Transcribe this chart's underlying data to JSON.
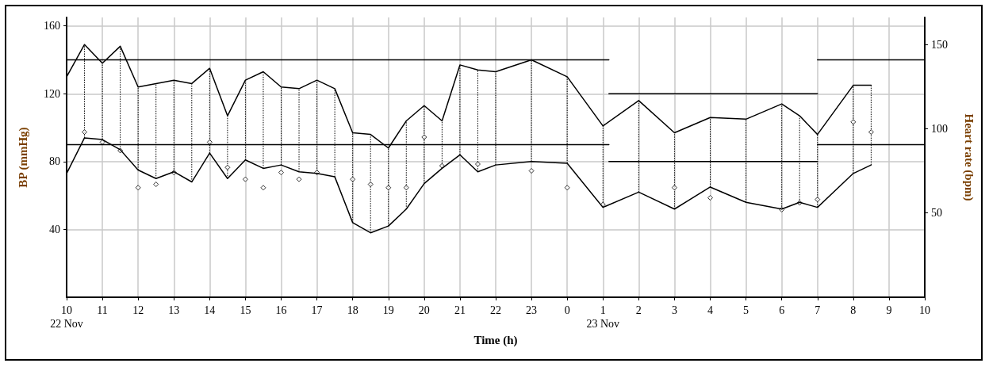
{
  "chart_data": {
    "type": "line",
    "xlabel": "Time (h)",
    "ylabel": "BP (mmHg)",
    "y2label": "Heart rate (bpm)",
    "x": [
      "--11-22T10:00",
      "--11-22T10:30",
      "--11-22T11:00",
      "--11-22T11:30",
      "--11-22T12:00",
      "--11-22T12:30",
      "--11-22T13:00",
      "--11-22T13:30",
      "--11-22T14:00",
      "--11-22T14:30",
      "--11-22T15:00",
      "--11-22T15:30",
      "--11-22T16:00",
      "--11-22T16:30",
      "--11-22T17:00",
      "--11-22T17:30",
      "--11-22T18:00",
      "--11-22T18:30",
      "--11-22T19:00",
      "--11-22T19:30",
      "--11-22T20:00",
      "--11-22T20:30",
      "--11-22T21:00",
      "--11-22T21:30",
      "--11-22T22:00",
      "--11-22T23:00",
      "--11-23T00:00",
      "--11-23T01:00",
      "--11-23T02:00",
      "--11-23T03:00",
      "--11-23T04:00",
      "--11-23T05:00",
      "--11-23T06:00",
      "--11-23T06:30",
      "--11-23T07:00",
      "--11-23T08:00",
      "--11-23T08:30"
    ],
    "series": [
      {
        "color": "#000000",
        "marker": "none",
        "values": [
          130,
          149,
          138,
          148,
          124,
          126,
          128,
          126,
          135,
          107,
          128,
          133,
          124,
          123,
          128,
          123,
          97,
          96,
          88,
          104,
          113,
          104,
          137,
          134,
          133,
          140,
          130,
          101,
          116,
          97,
          106,
          105,
          114,
          107,
          96,
          125,
          125
        ]
      },
      {
        "color": "#000000",
        "marker": "none",
        "values": [
          73,
          94,
          93,
          87,
          75,
          70,
          74,
          68,
          85,
          70,
          81,
          76,
          78,
          74,
          73,
          71,
          44,
          38,
          42,
          52,
          67,
          76,
          84,
          74,
          78,
          80,
          79,
          53,
          62,
          52,
          65,
          56,
          52,
          56,
          53,
          73,
          78
        ],
        "errors": [
          [
            73,
            130
          ],
          [
            94,
            149
          ],
          [
            93,
            138
          ],
          [
            87,
            148
          ],
          [
            75,
            124
          ],
          [
            70,
            126
          ],
          [
            74,
            128
          ],
          [
            68,
            126
          ],
          [
            85,
            135
          ],
          [
            70,
            107
          ],
          [
            81,
            128
          ],
          [
            76,
            133
          ],
          [
            78,
            124
          ],
          [
            74,
            123
          ],
          [
            73,
            128
          ],
          [
            71,
            123
          ],
          [
            44,
            97
          ],
          [
            38,
            96
          ],
          [
            42,
            88
          ],
          [
            52,
            104
          ],
          [
            67,
            113
          ],
          [
            76,
            104
          ],
          [
            84,
            137
          ],
          [
            74,
            134
          ],
          [
            78,
            133
          ],
          [
            80,
            140
          ],
          [
            79,
            130
          ],
          [
            53,
            101
          ],
          [
            62,
            116
          ],
          [
            52,
            97
          ],
          [
            65,
            106
          ],
          [
            56,
            105
          ],
          [
            52,
            114
          ],
          [
            56,
            107
          ],
          [
            53,
            96
          ],
          [
            73,
            125
          ],
          [
            78,
            125
          ]
        ]
      },
      {
        "type": "scatter",
        "axis": "y2",
        "color": "#000000",
        "marker": "diamond",
        "x": [
          "--11-22T10:30",
          "--11-22T11:00",
          "--11-22T11:30",
          "--11-22T12:00",
          "--11-22T12:30",
          "--11-22T13:00",
          "--11-22T14:00",
          "--11-22T14:30",
          "--11-22T15:00",
          "--11-22T15:30",
          "--11-22T16:00",
          "--11-22T16:30",
          "--11-22T17:00",
          "--11-22T18:00",
          "--11-22T18:30",
          "--11-22T19:00",
          "--11-22T19:30",
          "--11-22T20:00",
          "--11-22T20:30",
          "--11-22T21:30",
          "--11-22T23:00",
          "--11-23T00:00",
          "--11-23T01:00",
          "--11-23T03:00",
          "--11-23T04:00",
          "--11-23T06:00",
          "--11-23T06:30",
          "--11-23T07:00",
          "--11-23T08:00",
          "--11-23T08:30"
        ],
        "values": [
          98,
          92,
          87,
          65,
          67,
          74,
          92,
          77,
          70,
          65,
          74,
          70,
          74,
          70,
          67,
          65,
          65,
          95,
          78,
          79,
          75,
          65,
          55,
          65,
          59,
          52,
          56,
          58,
          104,
          98
        ]
      },
      {
        "color": "#000000",
        "marker": "none",
        "x": [
          "--11-22T10:00",
          "--11-23T01:10"
        ],
        "values": [
          140,
          140
        ]
      },
      {
        "color": "#000000",
        "marker": "none",
        "x": [
          "--11-23T01:10",
          "--11-23T07:00"
        ],
        "values": [
          120,
          120
        ]
      },
      {
        "color": "#000000",
        "marker": "none",
        "x": [
          "--11-23T07:00",
          "--11-23T10:00"
        ],
        "values": [
          140,
          140
        ]
      },
      {
        "color": "#000000",
        "marker": "none",
        "x": [
          "--11-22T10:00",
          "--11-23T01:10"
        ],
        "values": [
          90,
          90
        ]
      },
      {
        "color": "#000000",
        "marker": "none",
        "x": [
          "--11-23T01:10",
          "--11-23T07:00"
        ],
        "values": [
          80,
          80
        ]
      },
      {
        "color": "#000000",
        "marker": "none",
        "x": [
          "--11-23T07:00",
          "--11-23T10:00"
        ],
        "values": [
          90,
          90
        ]
      }
    ],
    "xlim": [
      "--11-22T10:00",
      "--11-23T10:00"
    ],
    "xticks": [
      {
        "value": "--11-22T10:00",
        "label": "10\n22 Nov"
      },
      {
        "value": "--11-22T11:00",
        "label": "11"
      },
      {
        "value": "--11-22T12:00",
        "label": "12"
      },
      {
        "value": "--11-22T13:00",
        "label": "13"
      },
      {
        "value": "--11-22T14:00",
        "label": "14"
      },
      {
        "value": "--11-22T15:00",
        "label": "15"
      },
      {
        "value": "--11-22T16:00",
        "label": "16"
      },
      {
        "value": "--11-22T17:00",
        "label": "17"
      },
      {
        "value": "--11-22T18:00",
        "label": "18"
      },
      {
        "value": "--11-22T19:00",
        "label": "19"
      },
      {
        "value": "--11-22T20:00",
        "label": "20"
      },
      {
        "value": "--11-22T21:00",
        "label": "21"
      },
      {
        "value": "--11-22T22:00",
        "label": "22"
      },
      {
        "value": "--11-22T23:00",
        "label": "23"
      },
      {
        "value": "--11-23T00:00",
        "label": "0"
      },
      {
        "value": "--11-23T01:00",
        "label": "1\n23 Nov"
      },
      {
        "value": "--11-23T02:00",
        "label": "2"
      },
      {
        "value": "--11-23T03:00",
        "label": "3"
      },
      {
        "value": "--11-23T04:00",
        "label": "4"
      },
      {
        "value": "--11-23T05:00",
        "label": "5"
      },
      {
        "value": "--11-23T06:00",
        "label": "6"
      },
      {
        "value": "--11-23T07:00",
        "label": "7"
      },
      {
        "value": "--11-23T08:00",
        "label": "8"
      },
      {
        "value": "--11-23T09:00",
        "label": "9"
      },
      {
        "value": "--11-23T10:00",
        "label": "10"
      }
    ],
    "ylim": [
      0,
      165
    ],
    "yticks": [
      40,
      80,
      120,
      160
    ],
    "y2lim": [
      0,
      166
    ],
    "y2ticks": [
      50,
      100,
      150
    ],
    "grid": true
  }
}
